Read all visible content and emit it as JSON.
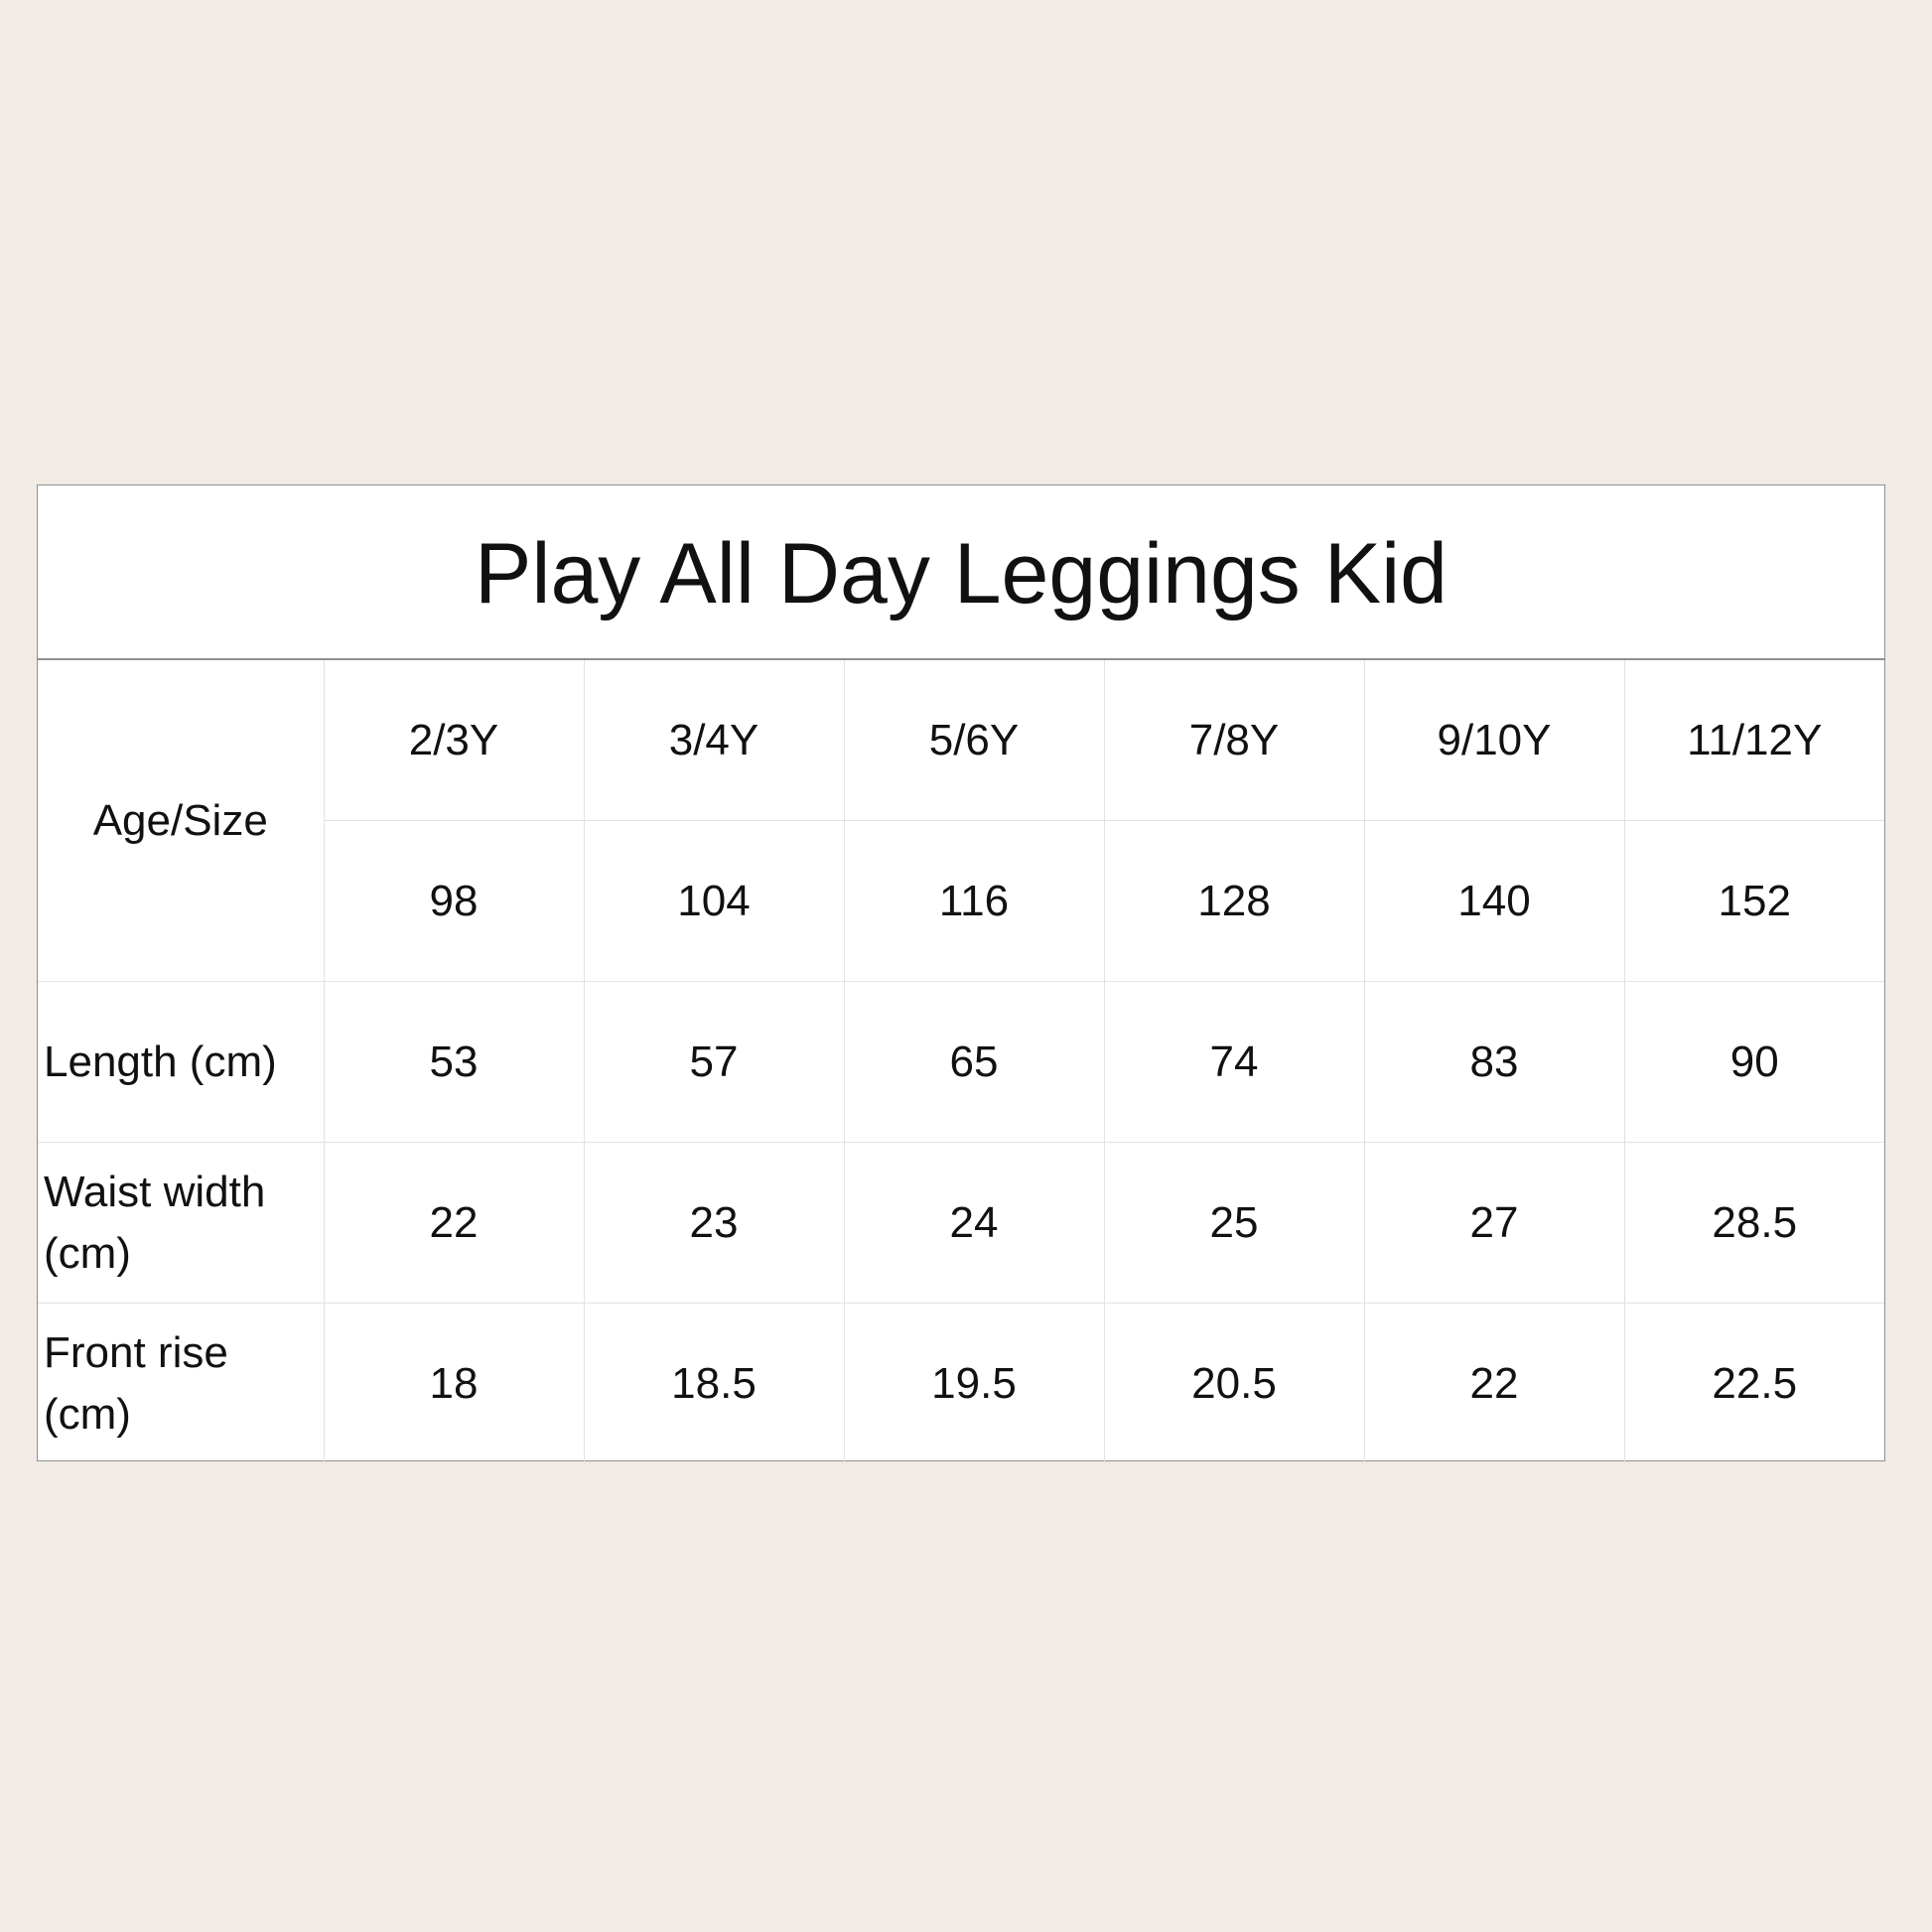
{
  "title": "Play All Day Leggings Kid",
  "row_header_age": "Age/Size",
  "sizes": [
    "2/3Y",
    "3/4Y",
    "5/6Y",
    "7/8Y",
    "9/10Y",
    "11/12Y"
  ],
  "heights": [
    "98",
    "104",
    "116",
    "128",
    "140",
    "152"
  ],
  "rows": [
    {
      "label": "Length (cm)",
      "values": [
        "53",
        "57",
        "65",
        "74",
        "83",
        "90"
      ]
    },
    {
      "label": "Waist width (cm)",
      "values": [
        "22",
        "23",
        "24",
        "25",
        "27",
        "28.5"
      ]
    },
    {
      "label": "Front rise (cm)",
      "values": [
        "18",
        "18.5",
        "19.5",
        "20.5",
        "22",
        "22.5"
      ]
    }
  ]
}
